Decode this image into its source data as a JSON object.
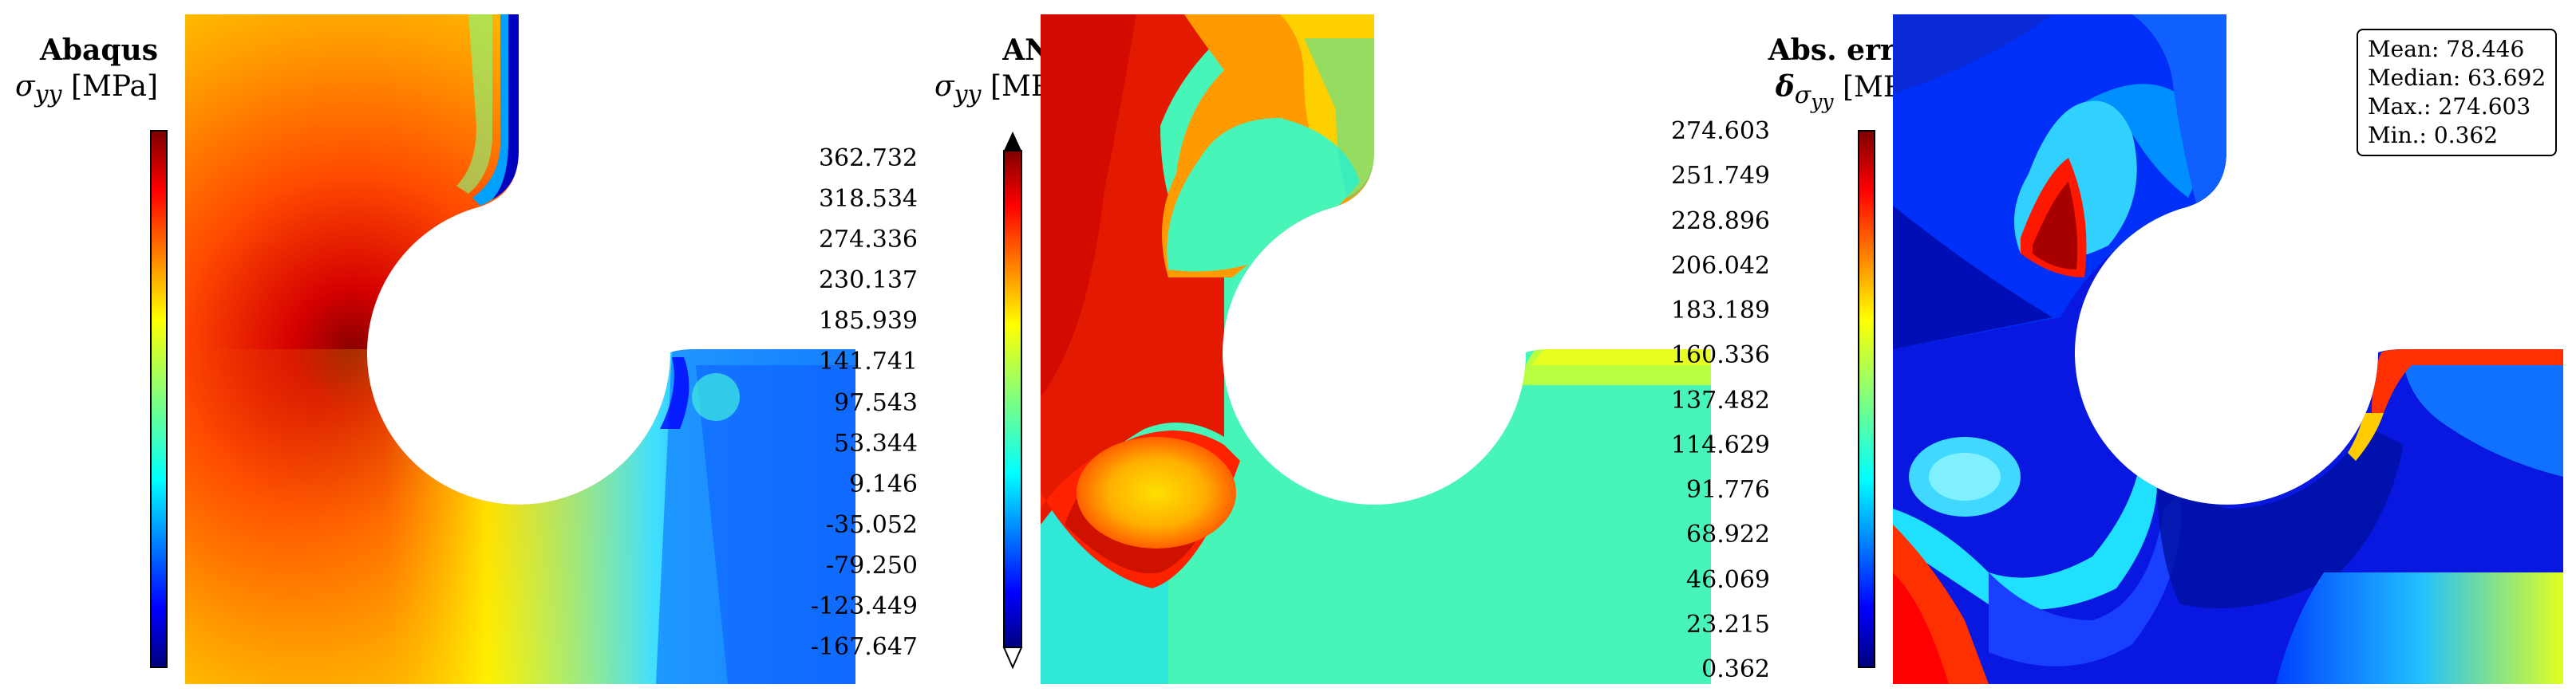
{
  "chart_data": [
    {
      "type": "heatmap",
      "title": "Abaqus",
      "quantity": "σ",
      "quantity_subscript": "yy",
      "unit": "[MPa]",
      "colorbar_ticks": [
        "362.732",
        "318.534",
        "274.336",
        "230.137",
        "185.939",
        "141.741",
        "97.543",
        "53.344",
        "9.146",
        "-35.052",
        "-79.250",
        "-123.449",
        "-167.647"
      ],
      "range": [
        -167.647,
        362.732
      ],
      "colormap": "jet"
    },
    {
      "type": "heatmap",
      "title": "ANN",
      "quantity": "σ",
      "quantity_subscript": "yy",
      "unit": "[MPa]",
      "colorbar_ticks": [
        "362.732",
        "318.534",
        "274.336",
        "230.137",
        "185.939",
        "141.741",
        "97.543",
        "53.344",
        "9.146",
        "-35.052",
        "-79.250",
        "-123.449",
        "-167.647"
      ],
      "range": [
        -167.647,
        362.732
      ],
      "colormap": "jet"
    },
    {
      "type": "heatmap",
      "title": "Abs. error",
      "quantity": "δ",
      "quantity_subscript": "σ",
      "quantity_subsubscript": "yy",
      "unit": "[MPa]",
      "colorbar_ticks": [
        "274.603",
        "251.749",
        "228.896",
        "206.042",
        "183.189",
        "160.336",
        "137.482",
        "114.629",
        "91.776",
        "68.922",
        "46.069",
        "23.215",
        "0.362"
      ],
      "range": [
        0.362,
        274.603
      ],
      "colormap": "jet",
      "stats": {
        "mean_label": "Mean: 78.446",
        "median_label": "Median: 63.692",
        "max_label": "Max.: 274.603",
        "min_label": "Min.: 0.362"
      }
    }
  ]
}
